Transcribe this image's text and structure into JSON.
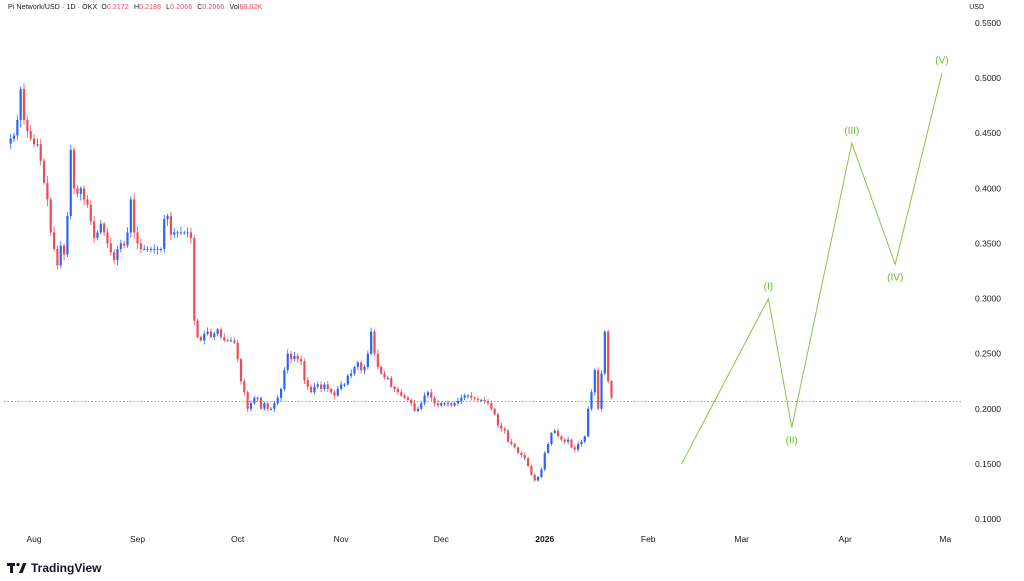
{
  "header": {
    "symbol_line": "Pi Network/USD · 1D · OKX",
    "ohlc": [
      {
        "k": "O",
        "v": "0.2172"
      },
      {
        "k": "H",
        "v": "0.2188"
      },
      {
        "k": "L",
        "v": "0.2066"
      },
      {
        "k": "C",
        "v": "0.2066"
      },
      {
        "k": "Vol",
        "v": "68.02K"
      }
    ]
  },
  "currency": "USD",
  "brand": "TradingView",
  "chart_data": {
    "type": "candlestick",
    "y_scale": "linear",
    "ylim": [
      0.09,
      0.56
    ],
    "y_ticks": [
      "0.1000",
      "0.1500",
      "0.2000",
      "0.2500",
      "0.3000",
      "0.3500",
      "0.4000",
      "0.4500",
      "0.5000",
      "0.5500"
    ],
    "x_ticks": [
      {
        "label": "Aug",
        "i": 7
      },
      {
        "label": "Sep",
        "i": 38
      },
      {
        "label": "Oct",
        "i": 68
      },
      {
        "label": "Nov",
        "i": 99
      },
      {
        "label": "Dec",
        "i": 129
      },
      {
        "label": "2026",
        "i": 160,
        "bold": true
      },
      {
        "label": "Feb",
        "i": 191
      },
      {
        "label": "Mar",
        "i": 219
      },
      {
        "label": "Apr",
        "i": 250
      },
      {
        "label": "Ma",
        "i": 280
      }
    ],
    "x_range": [
      -2,
      285
    ],
    "current_price": 0.2066,
    "colors": {
      "up": "#2962ff",
      "down": "#ef4a5a",
      "wave": "#8bc34a",
      "wave_label": "#66bb34",
      "price_line": "#ef4a5a"
    },
    "closes": [
      0.445,
      0.448,
      0.462,
      0.49,
      0.462,
      0.452,
      0.445,
      0.44,
      0.44,
      0.425,
      0.405,
      0.39,
      0.36,
      0.345,
      0.33,
      0.348,
      0.34,
      0.375,
      0.435,
      0.4,
      0.395,
      0.4,
      0.39,
      0.385,
      0.37,
      0.355,
      0.36,
      0.368,
      0.36,
      0.35,
      0.342,
      0.335,
      0.345,
      0.35,
      0.348,
      0.36,
      0.39,
      0.36,
      0.35,
      0.345,
      0.345,
      0.345,
      0.345,
      0.345,
      0.345,
      0.345,
      0.372,
      0.375,
      0.358,
      0.36,
      0.36,
      0.36,
      0.36,
      0.36,
      0.355,
      0.28,
      0.265,
      0.262,
      0.268,
      0.27,
      0.265,
      0.268,
      0.272,
      0.265,
      0.262,
      0.262,
      0.262,
      0.26,
      0.245,
      0.225,
      0.215,
      0.2,
      0.205,
      0.21,
      0.21,
      0.2,
      0.205,
      0.2,
      0.2,
      0.205,
      0.21,
      0.218,
      0.235,
      0.25,
      0.245,
      0.248,
      0.245,
      0.243,
      0.226,
      0.22,
      0.215,
      0.22,
      0.222,
      0.218,
      0.222,
      0.218,
      0.215,
      0.212,
      0.218,
      0.222,
      0.222,
      0.23,
      0.232,
      0.238,
      0.242,
      0.235,
      0.238,
      0.25,
      0.27,
      0.25,
      0.238,
      0.232,
      0.228,
      0.228,
      0.22,
      0.218,
      0.215,
      0.212,
      0.21,
      0.208,
      0.205,
      0.198,
      0.2,
      0.205,
      0.212,
      0.215,
      0.21,
      0.205,
      0.203,
      0.205,
      0.205,
      0.205,
      0.203,
      0.205,
      0.207,
      0.21,
      0.212,
      0.212,
      0.21,
      0.209,
      0.208,
      0.208,
      0.207,
      0.205,
      0.2,
      0.195,
      0.185,
      0.182,
      0.18,
      0.17,
      0.168,
      0.165,
      0.16,
      0.158,
      0.155,
      0.148,
      0.14,
      0.135,
      0.138,
      0.145,
      0.16,
      0.168,
      0.178,
      0.18,
      0.175,
      0.172,
      0.17,
      0.172,
      0.165,
      0.163,
      0.168,
      0.17,
      0.175,
      0.2,
      0.215,
      0.235,
      0.2,
      0.232,
      0.27,
      0.225,
      0.21
    ]
  },
  "wave": [
    {
      "label": "(I)",
      "i": 227,
      "v": 0.3
    },
    {
      "label": "(II)",
      "i": 234,
      "v": 0.183
    },
    {
      "label": "(III)",
      "i": 252,
      "v": 0.441
    },
    {
      "label": "(IV)",
      "i": 265,
      "v": 0.331
    },
    {
      "label": "(V)",
      "i": 279,
      "v": 0.505
    }
  ],
  "wave_start": {
    "i": 201,
    "v": 0.15
  }
}
